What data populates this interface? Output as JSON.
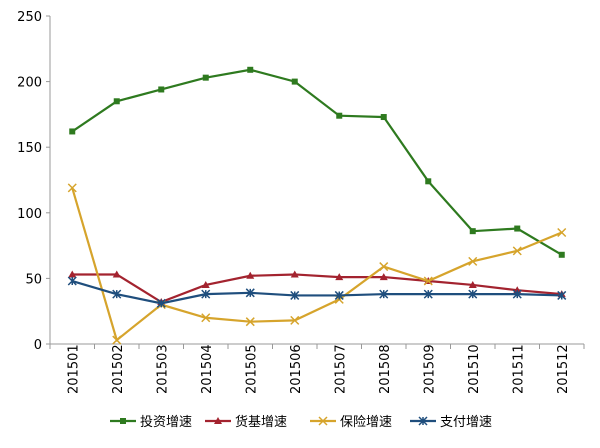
{
  "chart_data": {
    "type": "line",
    "title": "",
    "xlabel": "",
    "ylabel": "",
    "ylim": [
      0,
      250
    ],
    "yticks": [
      0,
      50,
      100,
      150,
      200,
      250
    ],
    "categories": [
      "201501",
      "201502",
      "201503",
      "201504",
      "201505",
      "201506",
      "201507",
      "201508",
      "201509",
      "201510",
      "201511",
      "201512"
    ],
    "legend_position": "bottom",
    "grid": false,
    "series": [
      {
        "name": "投资增速",
        "color": "#2e7a1f",
        "marker": "square",
        "values": [
          162,
          185,
          194,
          203,
          209,
          200,
          174,
          173,
          124,
          86,
          88,
          68
        ]
      },
      {
        "name": "货基增速",
        "color": "#a3232f",
        "marker": "triangle",
        "values": [
          53,
          53,
          32,
          45,
          52,
          53,
          51,
          51,
          48,
          45,
          41,
          38
        ]
      },
      {
        "name": "保险增速",
        "color": "#d6a42c",
        "marker": "x",
        "values": [
          119,
          3,
          30,
          20,
          17,
          18,
          34,
          59,
          48,
          63,
          71,
          85
        ]
      },
      {
        "name": "支付增速",
        "color": "#1f4e7d",
        "marker": "star",
        "values": [
          48,
          38,
          31,
          38,
          39,
          37,
          37,
          38,
          38,
          38,
          38,
          37
        ]
      }
    ]
  }
}
